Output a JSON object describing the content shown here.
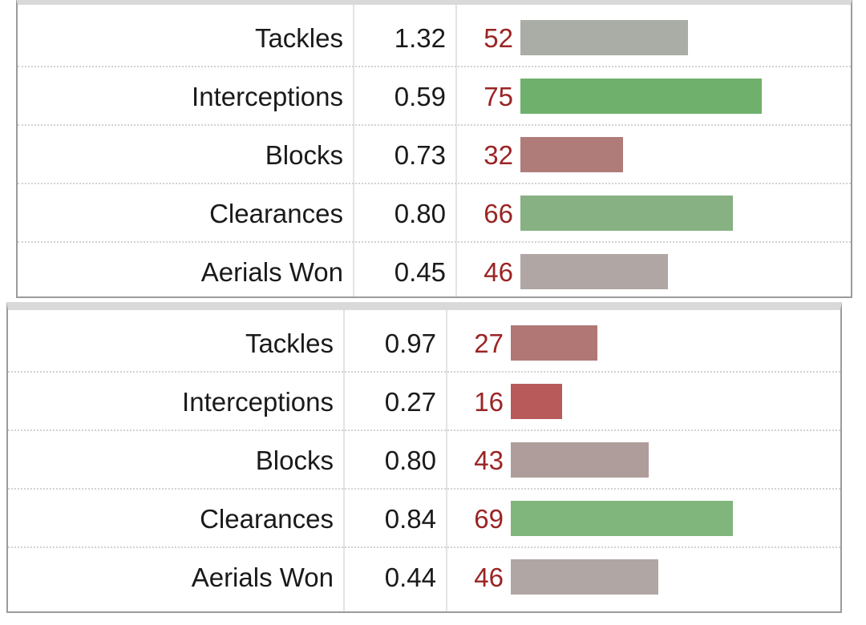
{
  "chart_data": [
    {
      "type": "bar",
      "orientation": "horizontal",
      "categories": [
        "Tackles",
        "Interceptions",
        "Blocks",
        "Clearances",
        "Aerials Won"
      ],
      "stat_values": [
        "1.32",
        "0.59",
        "0.73",
        "0.80",
        "0.45"
      ],
      "values": [
        52,
        75,
        32,
        66,
        46
      ],
      "bar_colors": [
        "#a9ada6",
        "#6fb06d",
        "#b07c79",
        "#87b083",
        "#b0a7a5"
      ],
      "xlim": [
        0,
        100
      ]
    },
    {
      "type": "bar",
      "orientation": "horizontal",
      "categories": [
        "Tackles",
        "Interceptions",
        "Blocks",
        "Clearances",
        "Aerials Won"
      ],
      "stat_values": [
        "0.97",
        "0.27",
        "0.80",
        "0.84",
        "0.44"
      ],
      "values": [
        27,
        16,
        43,
        69,
        46
      ],
      "bar_colors": [
        "#b07774",
        "#b85a59",
        "#ae9d9b",
        "#80b57c",
        "#b0a7a5"
      ],
      "xlim": [
        0,
        100
      ]
    }
  ]
}
